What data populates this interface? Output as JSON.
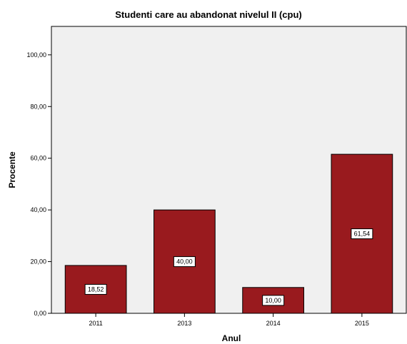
{
  "chart_data": {
    "type": "bar",
    "title": "Studenti care au abandonat nivelul II (cpu)",
    "xlabel": "Anul",
    "ylabel": "Procente",
    "categories": [
      "2011",
      "2013",
      "2014",
      "2015"
    ],
    "values": [
      18.52,
      40.0,
      10.0,
      61.54
    ],
    "data_labels": [
      "18,52",
      "40,00",
      "10,00",
      "61,54"
    ],
    "yticks": [
      0,
      20,
      40,
      60,
      80,
      100
    ],
    "ytick_labels": [
      "0,00",
      "20,00",
      "40,00",
      "60,00",
      "80,00",
      "100,00"
    ],
    "ylim": [
      0,
      111
    ],
    "grid": false,
    "colors": {
      "bar_fill": "#991a1e",
      "bar_stroke": "#000000",
      "plot_background": "#f0f0f0"
    }
  }
}
